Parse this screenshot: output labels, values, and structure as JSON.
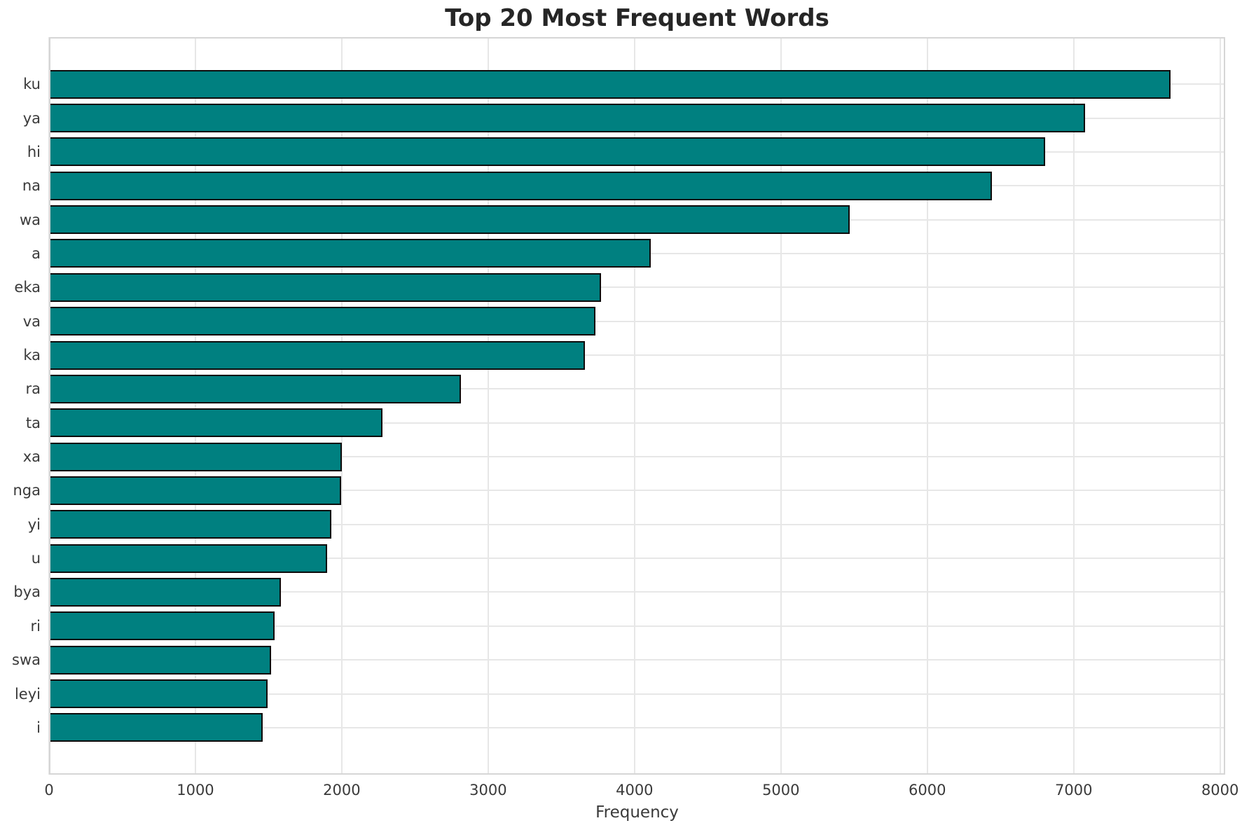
{
  "chart_data": {
    "type": "bar",
    "orientation": "horizontal",
    "title": "Top 20 Most Frequent Words",
    "xlabel": "Frequency",
    "ylabel": "",
    "categories": [
      "ku",
      "ya",
      "hi",
      "na",
      "wa",
      "a",
      "eka",
      "va",
      "ka",
      "ra",
      "ta",
      "xa",
      "nga",
      "yi",
      "u",
      "bya",
      "ri",
      "swa",
      "leyi",
      "i"
    ],
    "values": [
      7660,
      7080,
      6805,
      6440,
      5470,
      4110,
      3770,
      3735,
      3660,
      2815,
      2280,
      2000,
      1995,
      1930,
      1900,
      1585,
      1540,
      1515,
      1495,
      1460
    ],
    "xlim": [
      0,
      8035
    ],
    "x_ticks": [
      0,
      1000,
      2000,
      3000,
      4000,
      5000,
      6000,
      7000,
      8000
    ],
    "grid": true,
    "legend": false,
    "bar_color": "#008080",
    "bar_edge_color": "#0b0b0b",
    "grid_color": "#e7e7e7",
    "spine_color": "#d6d6d6",
    "title_color": "#262626",
    "tick_color": "#3a3a3a"
  }
}
